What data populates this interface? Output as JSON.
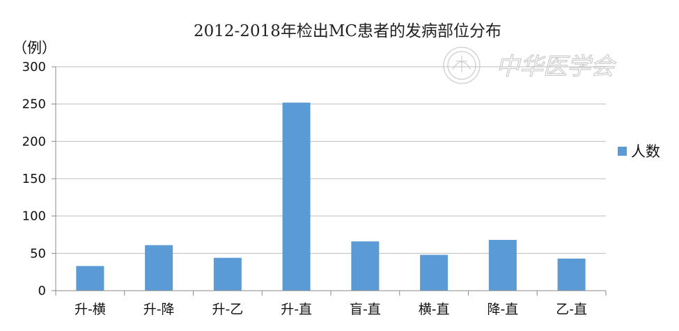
{
  "watermark": {
    "text": "中华医学会",
    "seal_icon": "society-seal-icon",
    "color": "#c9c9c9"
  },
  "chart_data": {
    "type": "bar",
    "title": "2012-2018年检出MC患者的发病部位分布",
    "ylabel": "（例）",
    "xlabel": "",
    "categories": [
      "升-横",
      "升-降",
      "升-乙",
      "升-直",
      "盲-直",
      "横-直",
      "降-直",
      "乙-直"
    ],
    "series": [
      {
        "name": "人数",
        "values": [
          33,
          61,
          44,
          252,
          66,
          48,
          68,
          43
        ],
        "color": "#5b9bd5"
      }
    ],
    "ylim": [
      0,
      300
    ],
    "yticks": [
      0,
      50,
      100,
      150,
      200,
      250,
      300
    ],
    "grid": true,
    "legend": "right"
  }
}
